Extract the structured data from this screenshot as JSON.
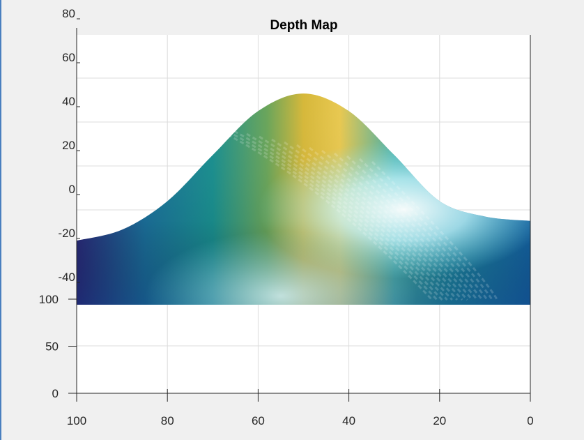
{
  "window": {
    "accent": "#4a7fbf",
    "background": "#f0f0f0"
  },
  "chart_data": {
    "type": "surface",
    "title": "Depth Map",
    "colormap": "parula",
    "lighting": "on",
    "axes": {
      "x": {
        "ticks": [
          100,
          80,
          60,
          40,
          20,
          0
        ],
        "range": [
          100,
          0
        ],
        "direction": "reversed"
      },
      "y": {
        "ticks": [
          0,
          50,
          100
        ],
        "range": [
          0,
          100
        ]
      },
      "z": {
        "ticks": [
          -40,
          -20,
          0,
          20,
          40,
          60,
          80
        ],
        "range": [
          -50,
          80
        ]
      }
    },
    "grid": true,
    "surface_profile": {
      "description_values_x": [
        100,
        90,
        80,
        70,
        60,
        50,
        40,
        30,
        20,
        10,
        0
      ],
      "peak_z": [
        -21,
        -16,
        -3,
        18,
        38,
        46,
        38,
        18,
        -3,
        -10,
        -12
      ]
    }
  }
}
